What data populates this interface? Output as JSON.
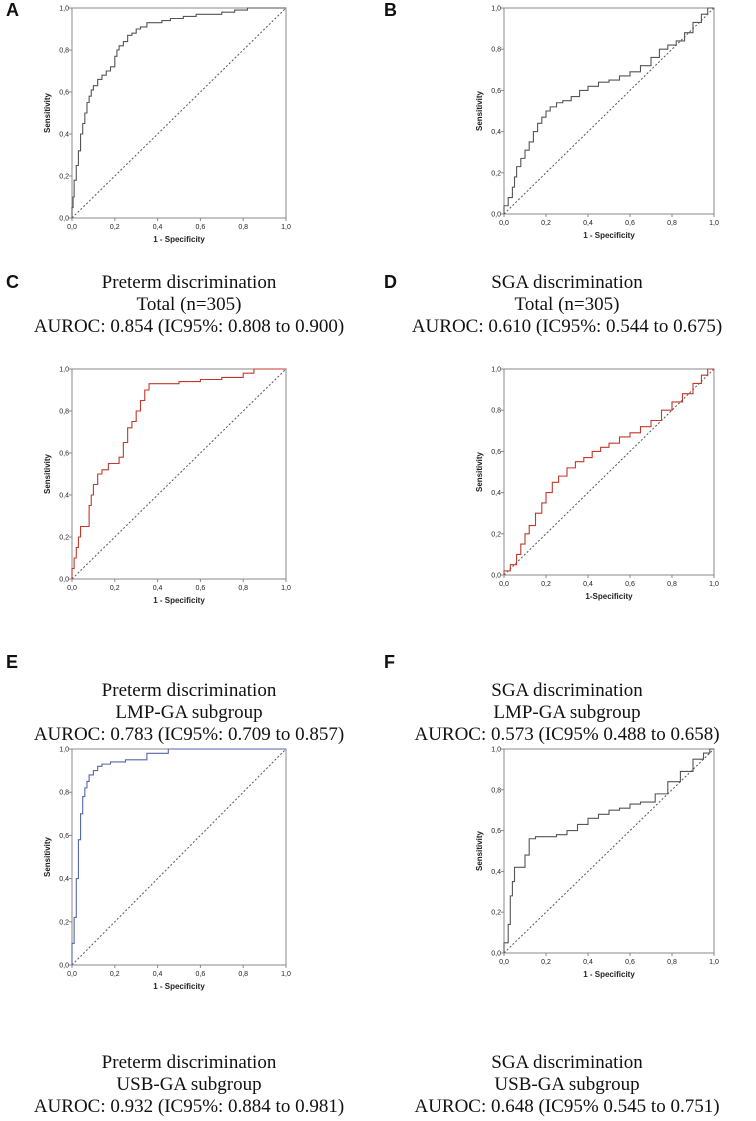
{
  "chart_data": [
    {
      "panel": "A",
      "type": "line",
      "xlabel": "1 - Specificity",
      "ylabel": "Sensitivity",
      "ticks": [
        "0,0",
        "0,2",
        "0,4",
        "0,6",
        "0,8",
        "1,0"
      ],
      "xlim": [
        0,
        1
      ],
      "ylim": [
        0,
        1
      ],
      "roc_color": "#555555",
      "caption": [
        "Preterm discrimination",
        "Total (n=305)",
        "AUROC: 0.854 (IC95%: 0.808 to 0.900)"
      ],
      "roc": [
        [
          0,
          0
        ],
        [
          0.005,
          0.05
        ],
        [
          0.01,
          0.1
        ],
        [
          0.02,
          0.18
        ],
        [
          0.03,
          0.25
        ],
        [
          0.04,
          0.32
        ],
        [
          0.05,
          0.4
        ],
        [
          0.06,
          0.45
        ],
        [
          0.07,
          0.5
        ],
        [
          0.08,
          0.55
        ],
        [
          0.09,
          0.58
        ],
        [
          0.1,
          0.61
        ],
        [
          0.12,
          0.63
        ],
        [
          0.14,
          0.66
        ],
        [
          0.16,
          0.68
        ],
        [
          0.18,
          0.7
        ],
        [
          0.2,
          0.72
        ],
        [
          0.21,
          0.77
        ],
        [
          0.22,
          0.8
        ],
        [
          0.24,
          0.82
        ],
        [
          0.26,
          0.84
        ],
        [
          0.28,
          0.87
        ],
        [
          0.3,
          0.88
        ],
        [
          0.32,
          0.9
        ],
        [
          0.35,
          0.91
        ],
        [
          0.38,
          0.93
        ],
        [
          0.42,
          0.93
        ],
        [
          0.46,
          0.94
        ],
        [
          0.52,
          0.95
        ],
        [
          0.58,
          0.96
        ],
        [
          0.64,
          0.97
        ],
        [
          0.7,
          0.97
        ],
        [
          0.76,
          0.98
        ],
        [
          0.82,
          0.99
        ],
        [
          0.86,
          1.0
        ],
        [
          1.0,
          1.0
        ]
      ]
    },
    {
      "panel": "B",
      "type": "line",
      "xlabel": "1 - Specificity",
      "ylabel": "Sensitivity",
      "ticks": [
        "0,0",
        "0,2",
        "0,4",
        "0,6",
        "0,8",
        "1,0"
      ],
      "xlim": [
        0,
        1
      ],
      "ylim": [
        0,
        1
      ],
      "roc_color": "#555555",
      "caption": [
        "SGA discrimination",
        "Total (n=305)",
        "AUROC: 0.610 (IC95%: 0.544 to 0.675)"
      ],
      "roc": [
        [
          0,
          0
        ],
        [
          0.02,
          0.04
        ],
        [
          0.04,
          0.08
        ],
        [
          0.05,
          0.13
        ],
        [
          0.06,
          0.18
        ],
        [
          0.08,
          0.23
        ],
        [
          0.1,
          0.27
        ],
        [
          0.12,
          0.31
        ],
        [
          0.14,
          0.35
        ],
        [
          0.16,
          0.4
        ],
        [
          0.18,
          0.44
        ],
        [
          0.2,
          0.47
        ],
        [
          0.22,
          0.5
        ],
        [
          0.25,
          0.52
        ],
        [
          0.28,
          0.54
        ],
        [
          0.32,
          0.55
        ],
        [
          0.36,
          0.57
        ],
        [
          0.4,
          0.6
        ],
        [
          0.45,
          0.62
        ],
        [
          0.5,
          0.64
        ],
        [
          0.55,
          0.65
        ],
        [
          0.6,
          0.67
        ],
        [
          0.65,
          0.69
        ],
        [
          0.7,
          0.72
        ],
        [
          0.74,
          0.76
        ],
        [
          0.78,
          0.8
        ],
        [
          0.82,
          0.82
        ],
        [
          0.86,
          0.84
        ],
        [
          0.9,
          0.88
        ],
        [
          0.94,
          0.93
        ],
        [
          0.97,
          0.97
        ],
        [
          1.0,
          1.0
        ]
      ]
    },
    {
      "panel": "C",
      "type": "line",
      "xlabel": "1 - Specificity",
      "ylabel": "Sensitivity",
      "ticks": [
        "0,0",
        "0,2",
        "0,4",
        "0,6",
        "0,8",
        "1,0"
      ],
      "xlim": [
        0,
        1
      ],
      "ylim": [
        0,
        1
      ],
      "roc_color": "#c0392b",
      "caption": [
        "Preterm discrimination",
        "LMP-GA subgroup",
        "AUROC: 0.783 (IC95%: 0.709 to 0.857)"
      ],
      "roc": [
        [
          0,
          0
        ],
        [
          0.01,
          0.05
        ],
        [
          0.02,
          0.1
        ],
        [
          0.03,
          0.15
        ],
        [
          0.04,
          0.2
        ],
        [
          0.05,
          0.25
        ],
        [
          0.08,
          0.25
        ],
        [
          0.09,
          0.35
        ],
        [
          0.1,
          0.4
        ],
        [
          0.12,
          0.45
        ],
        [
          0.14,
          0.5
        ],
        [
          0.17,
          0.52
        ],
        [
          0.22,
          0.55
        ],
        [
          0.24,
          0.58
        ],
        [
          0.26,
          0.65
        ],
        [
          0.28,
          0.72
        ],
        [
          0.3,
          0.75
        ],
        [
          0.32,
          0.8
        ],
        [
          0.34,
          0.85
        ],
        [
          0.36,
          0.9
        ],
        [
          0.38,
          0.93
        ],
        [
          0.5,
          0.93
        ],
        [
          0.6,
          0.94
        ],
        [
          0.7,
          0.95
        ],
        [
          0.8,
          0.96
        ],
        [
          0.85,
          0.98
        ],
        [
          0.87,
          1.0
        ],
        [
          1.0,
          1.0
        ]
      ]
    },
    {
      "panel": "D",
      "type": "line",
      "xlabel": "1-Specificity",
      "ylabel": "Sensitivity",
      "ticks": [
        "0,0",
        "0,2",
        "0,4",
        "0,6",
        "0,8",
        "1,0"
      ],
      "xlim": [
        0,
        1
      ],
      "ylim": [
        0,
        1
      ],
      "roc_color": "#c0392b",
      "caption": [
        "SGA discrimination",
        "LMP-GA subgroup",
        "AUROC: 0.573 (IC95% 0.488 to 0.658)"
      ],
      "roc": [
        [
          0,
          0
        ],
        [
          0.03,
          0.02
        ],
        [
          0.06,
          0.05
        ],
        [
          0.08,
          0.1
        ],
        [
          0.1,
          0.15
        ],
        [
          0.12,
          0.2
        ],
        [
          0.15,
          0.24
        ],
        [
          0.18,
          0.3
        ],
        [
          0.2,
          0.35
        ],
        [
          0.23,
          0.4
        ],
        [
          0.26,
          0.45
        ],
        [
          0.3,
          0.48
        ],
        [
          0.34,
          0.52
        ],
        [
          0.38,
          0.55
        ],
        [
          0.42,
          0.57
        ],
        [
          0.46,
          0.6
        ],
        [
          0.5,
          0.62
        ],
        [
          0.55,
          0.64
        ],
        [
          0.6,
          0.67
        ],
        [
          0.65,
          0.69
        ],
        [
          0.7,
          0.72
        ],
        [
          0.75,
          0.75
        ],
        [
          0.8,
          0.8
        ],
        [
          0.85,
          0.84
        ],
        [
          0.9,
          0.88
        ],
        [
          0.94,
          0.93
        ],
        [
          0.97,
          0.97
        ],
        [
          1.0,
          1.0
        ]
      ]
    },
    {
      "panel": "E",
      "type": "line",
      "xlabel": "1 - Specificity",
      "ylabel": "Sensitivity",
      "ticks": [
        "0,0",
        "0,2",
        "0,4",
        "0,6",
        "0,8",
        "1,0"
      ],
      "xlim": [
        0,
        1
      ],
      "ylim": [
        0,
        1
      ],
      "roc_color": "#5566aa",
      "caption": [
        "Preterm discrimination",
        "USB-GA subgroup",
        "AUROC: 0.932 (IC95%: 0.884 to 0.981)"
      ],
      "roc": [
        [
          0,
          0
        ],
        [
          0.01,
          0.1
        ],
        [
          0.02,
          0.22
        ],
        [
          0.03,
          0.4
        ],
        [
          0.04,
          0.58
        ],
        [
          0.05,
          0.7
        ],
        [
          0.06,
          0.78
        ],
        [
          0.07,
          0.82
        ],
        [
          0.08,
          0.85
        ],
        [
          0.1,
          0.88
        ],
        [
          0.12,
          0.9
        ],
        [
          0.14,
          0.92
        ],
        [
          0.18,
          0.93
        ],
        [
          0.25,
          0.94
        ],
        [
          0.35,
          0.95
        ],
        [
          0.45,
          0.98
        ],
        [
          0.48,
          1.0
        ],
        [
          1.0,
          1.0
        ]
      ]
    },
    {
      "panel": "F",
      "type": "line",
      "xlabel": "1 - Specificity",
      "ylabel": "Sensitivity",
      "ticks": [
        "0,0",
        "0,2",
        "0,4",
        "0,6",
        "0,8",
        "1,0"
      ],
      "xlim": [
        0,
        1
      ],
      "ylim": [
        0,
        1
      ],
      "roc_color": "#555555",
      "caption": [
        "SGA discrimination",
        "USB-GA subgroup",
        "AUROC: 0.648 (IC95% 0.545 to 0.751)"
      ],
      "roc": [
        [
          0,
          0
        ],
        [
          0.02,
          0.05
        ],
        [
          0.03,
          0.14
        ],
        [
          0.04,
          0.28
        ],
        [
          0.05,
          0.35
        ],
        [
          0.06,
          0.42
        ],
        [
          0.1,
          0.42
        ],
        [
          0.12,
          0.48
        ],
        [
          0.15,
          0.56
        ],
        [
          0.25,
          0.57
        ],
        [
          0.3,
          0.58
        ],
        [
          0.35,
          0.6
        ],
        [
          0.4,
          0.63
        ],
        [
          0.45,
          0.66
        ],
        [
          0.5,
          0.68
        ],
        [
          0.55,
          0.7
        ],
        [
          0.6,
          0.71
        ],
        [
          0.65,
          0.73
        ],
        [
          0.72,
          0.74
        ],
        [
          0.78,
          0.78
        ],
        [
          0.84,
          0.84
        ],
        [
          0.9,
          0.89
        ],
        [
          0.95,
          0.95
        ],
        [
          0.98,
          0.98
        ],
        [
          1.0,
          1.0
        ]
      ]
    }
  ]
}
